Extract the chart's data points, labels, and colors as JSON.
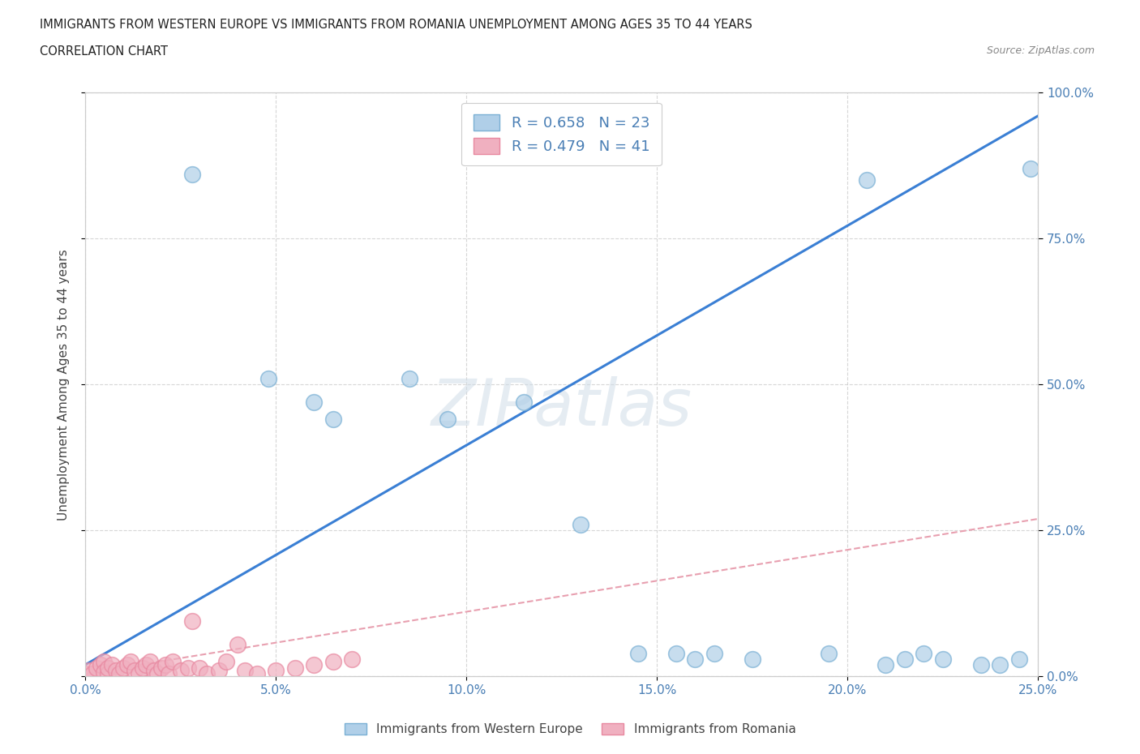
{
  "title_line1": "IMMIGRANTS FROM WESTERN EUROPE VS IMMIGRANTS FROM ROMANIA UNEMPLOYMENT AMONG AGES 35 TO 44 YEARS",
  "title_line2": "CORRELATION CHART",
  "source": "Source: ZipAtlas.com",
  "ylabel": "Unemployment Among Ages 35 to 44 years",
  "watermark": "ZIPatlas",
  "legend_entries": [
    {
      "label": "Immigrants from Western Europe",
      "color": "#a8c8e8",
      "edge_color": "#7ab0d4",
      "R": 0.658,
      "N": 23
    },
    {
      "label": "Immigrants from Romania",
      "color": "#f0b0c0",
      "edge_color": "#e88098",
      "R": 0.479,
      "N": 41
    }
  ],
  "blue_scatter_x": [
    0.028,
    0.048,
    0.06,
    0.065,
    0.085,
    0.095,
    0.115,
    0.13,
    0.145,
    0.155,
    0.16,
    0.165,
    0.175,
    0.195,
    0.205,
    0.21,
    0.215,
    0.22,
    0.225,
    0.235,
    0.24,
    0.245,
    0.248
  ],
  "blue_scatter_y": [
    0.86,
    0.51,
    0.47,
    0.44,
    0.51,
    0.44,
    0.47,
    0.26,
    0.04,
    0.04,
    0.03,
    0.04,
    0.03,
    0.04,
    0.85,
    0.02,
    0.03,
    0.04,
    0.03,
    0.02,
    0.02,
    0.03,
    0.87
  ],
  "pink_scatter_x": [
    0.0,
    0.001,
    0.002,
    0.003,
    0.004,
    0.005,
    0.005,
    0.006,
    0.006,
    0.007,
    0.008,
    0.009,
    0.01,
    0.011,
    0.012,
    0.013,
    0.014,
    0.015,
    0.016,
    0.017,
    0.018,
    0.019,
    0.02,
    0.021,
    0.022,
    0.023,
    0.025,
    0.027,
    0.028,
    0.03,
    0.032,
    0.035,
    0.037,
    0.04,
    0.042,
    0.045,
    0.05,
    0.055,
    0.06,
    0.065,
    0.07
  ],
  "pink_scatter_y": [
    0.005,
    0.01,
    0.005,
    0.015,
    0.02,
    0.025,
    0.008,
    0.005,
    0.015,
    0.02,
    0.01,
    0.005,
    0.015,
    0.02,
    0.025,
    0.01,
    0.005,
    0.015,
    0.02,
    0.025,
    0.01,
    0.005,
    0.015,
    0.02,
    0.005,
    0.025,
    0.01,
    0.015,
    0.095,
    0.015,
    0.005,
    0.01,
    0.025,
    0.055,
    0.01,
    0.005,
    0.01,
    0.015,
    0.02,
    0.025,
    0.03
  ],
  "blue_line_x": [
    0.0,
    0.25
  ],
  "blue_line_y": [
    0.02,
    0.96
  ],
  "pink_line_x": [
    0.0,
    0.25
  ],
  "pink_line_y": [
    0.005,
    0.27
  ],
  "xlim": [
    0.0,
    0.25
  ],
  "ylim": [
    0.0,
    1.0
  ],
  "xticks": [
    0.0,
    0.05,
    0.1,
    0.15,
    0.2,
    0.25
  ],
  "yticks": [
    0.0,
    0.25,
    0.5,
    0.75,
    1.0
  ],
  "xticklabels_bottom": [
    "0.0%",
    "5.0%",
    "10.0%",
    "15.0%",
    "20.0%",
    "25.0%"
  ],
  "yticklabels_left": [
    "",
    "",
    "",
    "",
    ""
  ],
  "yticklabels_right": [
    "0.0%",
    "25.0%",
    "50.0%",
    "75.0%",
    "100.0%"
  ],
  "blue_scatter_color": "#b0cfe8",
  "blue_edge_color": "#7ab0d4",
  "pink_scatter_color": "#f0b0c0",
  "pink_edge_color": "#e888a0",
  "blue_line_color": "#3a7fd4",
  "pink_line_color": "#e8a0b0",
  "grid_color": "#cccccc",
  "background_color": "#ffffff",
  "title_color": "#222222",
  "axis_label_color": "#444444",
  "tick_color": "#4a7fb5"
}
